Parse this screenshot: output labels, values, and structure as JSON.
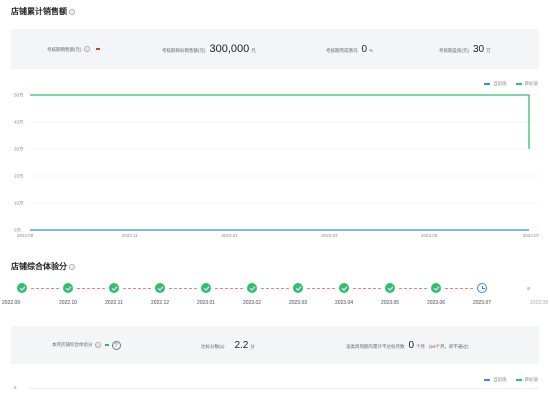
{
  "section1": {
    "title": "店铺累计销售额",
    "stats": [
      {
        "label": "考核期销售额(元)",
        "value": "",
        "unit": "",
        "missing": true
      },
      {
        "label": "考核期目标销售额(元)",
        "value": "300,000",
        "unit": "元"
      },
      {
        "label": "考核期完成情况",
        "value": "0",
        "unit": "%"
      },
      {
        "label": "考核期差值(元)",
        "value": "30",
        "unit": "万"
      }
    ]
  },
  "legend": {
    "current": "当前值",
    "target": "目标值"
  },
  "colors": {
    "current": "#3b82f6",
    "target": "#2fbf71",
    "alert": "#e33322"
  },
  "chart_data": {
    "type": "line",
    "y_ticks": [
      "50万",
      "40万",
      "30万",
      "20万",
      "10万",
      "0万"
    ],
    "x_ticks": [
      "2022.09",
      "2022.11",
      "2023.01",
      "2023.03",
      "2023.05",
      "2023.07"
    ],
    "ylim": [
      0,
      500000
    ],
    "series": [
      {
        "name": "当前值",
        "points": [
          [
            "2022.09",
            0
          ],
          [
            "2023.07",
            0
          ]
        ]
      },
      {
        "name": "目标值",
        "points": [
          [
            "2022.09",
            500000
          ],
          [
            "2023.07",
            500000
          ],
          [
            "2023.07",
            300000
          ]
        ]
      }
    ],
    "grid": true,
    "legend_position": "top-right"
  },
  "section2": {
    "title": "店铺综合体验分",
    "months": [
      "2022.09",
      "2022.10",
      "2022.11",
      "2022.12",
      "2023.01",
      "2023.02",
      "2023.03",
      "2023.04",
      "2023.05",
      "2023.06",
      "2023.07",
      "2023.08"
    ],
    "statuses": [
      "done",
      "done",
      "done",
      "done",
      "done",
      "done",
      "done",
      "done",
      "done",
      "done",
      "current",
      "future"
    ],
    "stat_label": "本月店铺综合体验分",
    "target_label": "达标分数(≥)",
    "target_value": "2.2",
    "target_unit": "分",
    "consecutive_label": "该类目周期内累计不达标月数",
    "consecutive_value": "0",
    "consecutive_unit": "个月",
    "note_prefix": "(≥",
    "note_num": "6",
    "note_suffix": "个月，即不通过)",
    "y_tick": "5"
  }
}
